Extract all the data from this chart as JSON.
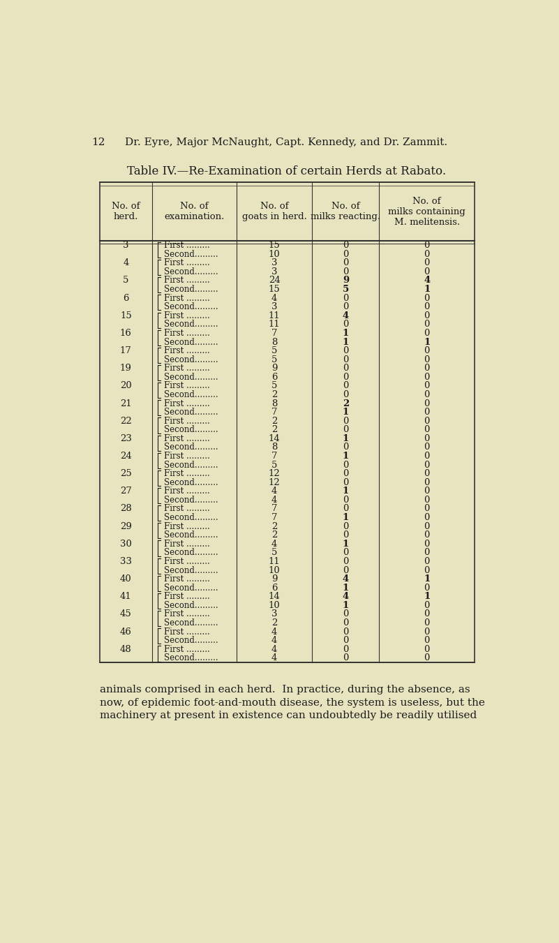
{
  "page_number": "12",
  "page_header": "Dr. Eyre, Major McNaught, Capt. Kennedy, and Dr. Zammit.",
  "table_title": "Table IV.—Re-Examination of certain Herds at Rabato.",
  "col_headers": [
    "No. of\nherd.",
    "No. of\nexamination.",
    "No. of\ngoats in herd.",
    "No. of\nmilks reacting.",
    "No. of\nmilks containing\nM. melitensis."
  ],
  "rows": [
    [
      "3",
      "First .........",
      "15",
      "0",
      "0"
    ],
    [
      "",
      "Second.........",
      "10",
      "0",
      "0"
    ],
    [
      "4",
      "First .........",
      "3",
      "0",
      "0"
    ],
    [
      "",
      "Second.........",
      "3",
      "0",
      "0"
    ],
    [
      "5",
      "First .........",
      "24",
      "9",
      "4"
    ],
    [
      "",
      "Second.........",
      "15",
      "5",
      "1"
    ],
    [
      "6",
      "First .........",
      "4",
      "0",
      "0"
    ],
    [
      "",
      "Second.........",
      "3",
      "0",
      "0"
    ],
    [
      "15",
      "First .........",
      "11",
      "4",
      "0"
    ],
    [
      "",
      "Second.........",
      "11",
      "0",
      "0"
    ],
    [
      "16",
      "First .........",
      "7",
      "1",
      "0"
    ],
    [
      "",
      "Second.........",
      "8",
      "1",
      "1"
    ],
    [
      "17",
      "First .........",
      "5",
      "0",
      "0"
    ],
    [
      "",
      "Second.........",
      "5",
      "0",
      "0"
    ],
    [
      "19",
      "First .........",
      "9",
      "0",
      "0"
    ],
    [
      "",
      "Second.........",
      "6",
      "0",
      "0"
    ],
    [
      "20",
      "First .........",
      "5",
      "0",
      "0"
    ],
    [
      "",
      "Second.........",
      "2",
      "0",
      "0"
    ],
    [
      "21",
      "First .........",
      "8",
      "2",
      "0"
    ],
    [
      "",
      "Second.........",
      "7",
      "1",
      "0"
    ],
    [
      "22",
      "First .........",
      "2",
      "0",
      "0"
    ],
    [
      "",
      "Second.........",
      "2",
      "0",
      "0"
    ],
    [
      "23",
      "First .........",
      "14",
      "1",
      "0"
    ],
    [
      "",
      "Second.........",
      "8",
      "0",
      "0"
    ],
    [
      "24",
      "First .........",
      "7",
      "1",
      "0"
    ],
    [
      "",
      "Second.........",
      "5",
      "0",
      "0"
    ],
    [
      "25",
      "First .........",
      "12",
      "0",
      "0"
    ],
    [
      "",
      "Second.........",
      "12",
      "0",
      "0"
    ],
    [
      "27",
      "First .........",
      "4",
      "1",
      "0"
    ],
    [
      "",
      "Second.........",
      "4",
      "0",
      "0"
    ],
    [
      "28",
      "First .........",
      "7",
      "0",
      "0"
    ],
    [
      "",
      "Second.........",
      "7",
      "1",
      "0"
    ],
    [
      "29",
      "First .........",
      "2",
      "0",
      "0"
    ],
    [
      "",
      "Second.........",
      "2",
      "0",
      "0"
    ],
    [
      "30",
      "First .........",
      "4",
      "1",
      "0"
    ],
    [
      "",
      "Second.........",
      "5",
      "0",
      "0"
    ],
    [
      "33",
      "First .........",
      "11",
      "0",
      "0"
    ],
    [
      "",
      "Second.........",
      "10",
      "0",
      "0"
    ],
    [
      "40",
      "First .........",
      "9",
      "4",
      "1"
    ],
    [
      "",
      "Second.........",
      "6",
      "1",
      "0"
    ],
    [
      "41",
      "First .........",
      "14",
      "4",
      "1"
    ],
    [
      "",
      "Second.........",
      "10",
      "1",
      "0"
    ],
    [
      "45",
      "First .........",
      "3",
      "0",
      "0"
    ],
    [
      "",
      "Second.........",
      "2",
      "0",
      "0"
    ],
    [
      "46",
      "First .........",
      "4",
      "0",
      "0"
    ],
    [
      "",
      "Second.........",
      "4",
      "0",
      "0"
    ],
    [
      "48",
      "First .........",
      "4",
      "0",
      "0"
    ],
    [
      "",
      "Second.........",
      "4",
      "0",
      "0"
    ]
  ],
  "footer_text": "animals comprised in each herd.  In practice, during the absence, as\nnow, of epidemic foot-and-mouth disease, the system is useless, but the\nmachinery at present in existence can undoubtedly be readily utilised",
  "bg_color": "#e8e4c0",
  "text_color": "#1a1a1a",
  "line_color": "#333333"
}
